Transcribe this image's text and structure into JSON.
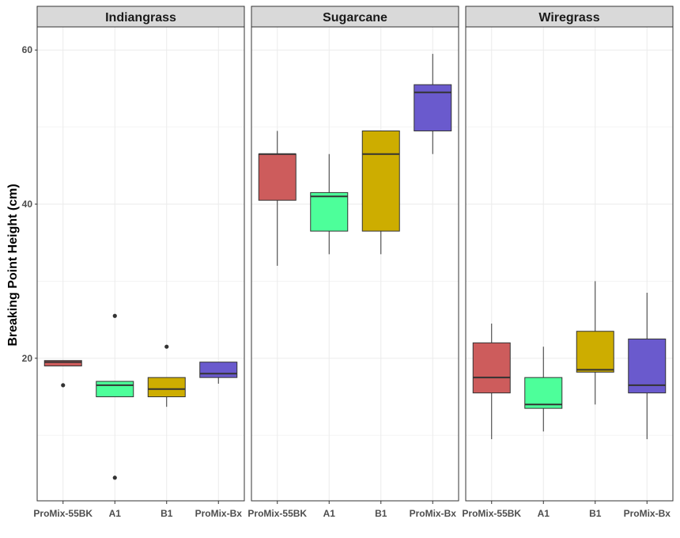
{
  "chart_data": {
    "type": "boxplot",
    "ylabel": "Breaking Point Height (cm)",
    "xlabel": "",
    "ylim": [
      1.5,
      63
    ],
    "y_ticks": [
      20,
      40,
      60
    ],
    "categories": [
      "ProMix-55BK",
      "A1",
      "B1",
      "ProMix-Bx"
    ],
    "colors": {
      "ProMix-55BK": "#cd5c5c",
      "A1": "#4dff9a",
      "B1": "#cdad00",
      "ProMix-Bx": "#6a5acd"
    },
    "panels": [
      {
        "name": "Indiangrass",
        "boxes": [
          {
            "category": "ProMix-55BK",
            "min": 19.0,
            "q1": 19.0,
            "median": 19.5,
            "q3": 19.7,
            "max": 19.7,
            "outliers": [
              16.5
            ]
          },
          {
            "category": "A1",
            "min": 15.0,
            "q1": 15.0,
            "median": 16.5,
            "q3": 17.0,
            "max": 17.0,
            "outliers": [
              25.5,
              4.5
            ]
          },
          {
            "category": "B1",
            "min": 13.7,
            "q1": 15.0,
            "median": 16.0,
            "q3": 17.5,
            "max": 17.5,
            "outliers": [
              21.5
            ]
          },
          {
            "category": "ProMix-Bx",
            "min": 16.7,
            "q1": 17.5,
            "median": 18.0,
            "q3": 19.5,
            "max": 19.5,
            "outliers": []
          }
        ]
      },
      {
        "name": "Sugarcane",
        "boxes": [
          {
            "category": "ProMix-55BK",
            "min": 32.0,
            "q1": 40.5,
            "median": 46.5,
            "q3": 46.5,
            "max": 49.5,
            "outliers": []
          },
          {
            "category": "A1",
            "min": 33.5,
            "q1": 36.5,
            "median": 41.0,
            "q3": 41.5,
            "max": 46.5,
            "outliers": []
          },
          {
            "category": "B1",
            "min": 33.5,
            "q1": 36.5,
            "median": 46.5,
            "q3": 49.5,
            "max": 49.5,
            "outliers": []
          },
          {
            "category": "ProMix-Bx",
            "min": 46.5,
            "q1": 49.5,
            "median": 54.5,
            "q3": 55.5,
            "max": 59.5,
            "outliers": []
          }
        ]
      },
      {
        "name": "Wiregrass",
        "boxes": [
          {
            "category": "ProMix-55BK",
            "min": 9.5,
            "q1": 15.5,
            "median": 17.5,
            "q3": 22.0,
            "max": 24.5,
            "outliers": []
          },
          {
            "category": "A1",
            "min": 10.5,
            "q1": 13.5,
            "median": 14.0,
            "q3": 17.5,
            "max": 21.5,
            "outliers": []
          },
          {
            "category": "B1",
            "min": 14.0,
            "q1": 18.2,
            "median": 18.5,
            "q3": 23.5,
            "max": 30.0,
            "outliers": []
          },
          {
            "category": "ProMix-Bx",
            "min": 9.5,
            "q1": 15.5,
            "median": 16.5,
            "q3": 22.5,
            "max": 28.5,
            "outliers": []
          }
        ]
      }
    ]
  }
}
